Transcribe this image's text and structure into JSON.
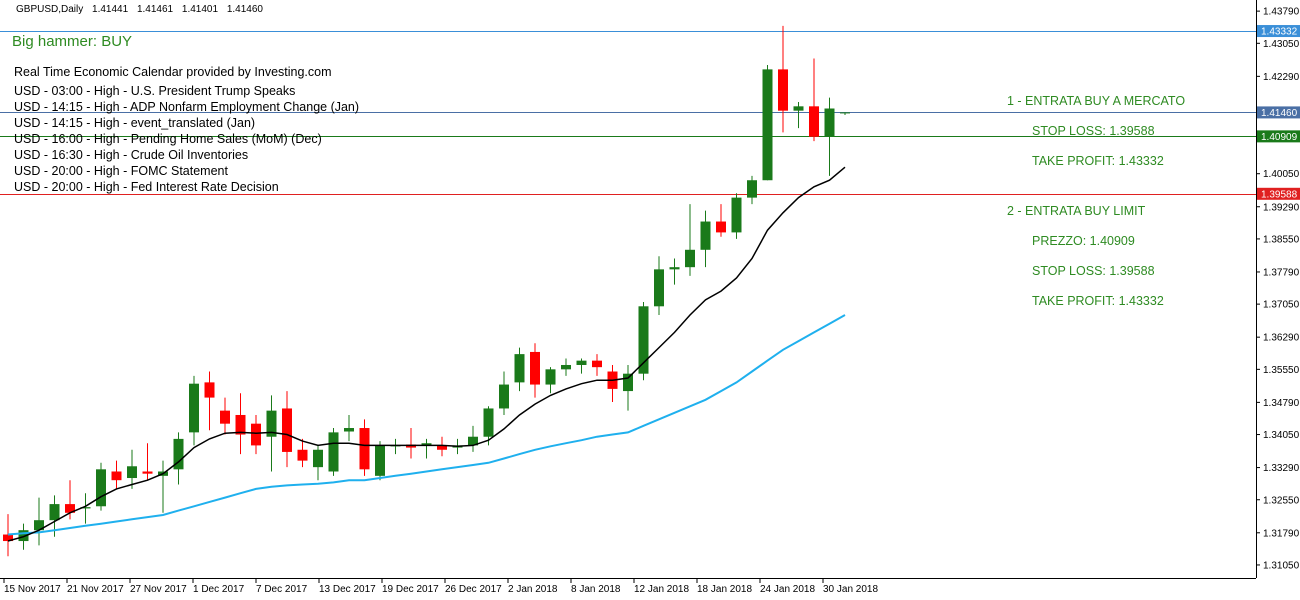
{
  "header": {
    "symbol": "GBPUSD,Daily",
    "ohlc": [
      "1.41441",
      "1.41461",
      "1.41401",
      "1.41460"
    ]
  },
  "signal": "Big hammer: BUY",
  "calendar": {
    "title": "Real Time Economic Calendar provided by Investing.com",
    "events": [
      "USD - 03:00 - High - U.S. President Trump Speaks",
      "USD - 14:15 - High - ADP Nonfarm Employment Change (Jan)",
      "USD - 14:15 - High - event_translated (Jan)",
      "USD - 16:00 - High - Pending Home Sales (MoM) (Dec)",
      "USD - 16:30 - High - Crude Oil Inventories",
      "USD - 20:00 - High - FOMC Statement",
      "USD - 20:00 - High - Fed Interest Rate Decision"
    ]
  },
  "trade_plan": [
    "1 - ENTRATA BUY A MERCATO",
    "STOP LOSS: 1.39588",
    "TAKE PROFIT: 1.43332",
    "2 - ENTRATA BUY LIMIT",
    "PREZZO: 1.40909",
    "STOP LOSS: 1.39588",
    "TAKE PROFIT: 1.43332"
  ],
  "colors": {
    "bull": "#1a7a1a",
    "bear": "#ff0000",
    "ma_fast": "#000000",
    "ma_slow": "#1fb0ee",
    "tp_line": "#3a8fd8",
    "price_line": "#4a6fa5",
    "entry_line": "#1a7a1a",
    "sl_line": "#e02020"
  },
  "chart_data": {
    "type": "candlestick",
    "symbol": "GBPUSD,Daily",
    "y_range": [
      1.3075,
      1.44
    ],
    "y_ticks": [
      "1.43790",
      "1.43050",
      "1.42290",
      "1.41460",
      "1.40909",
      "1.40050",
      "1.39588",
      "1.39290",
      "1.38550",
      "1.37790",
      "1.37050",
      "1.36290",
      "1.35550",
      "1.34790",
      "1.34050",
      "1.33290",
      "1.32550",
      "1.31790",
      "1.31050"
    ],
    "x_labels": [
      "15 Nov 2017",
      "21 Nov 2017",
      "27 Nov 2017",
      "1 Dec 2017",
      "7 Dec 2017",
      "13 Dec 2017",
      "19 Dec 2017",
      "26 Dec 2017",
      "2 Jan 2018",
      "8 Jan 2018",
      "12 Jan 2018",
      "18 Jan 2018",
      "24 Jan 2018",
      "30 Jan 2018"
    ],
    "levels": [
      {
        "price": 1.43332,
        "label": "1.43332",
        "role": "tp"
      },
      {
        "price": 1.4146,
        "label": "1.41460",
        "role": "price"
      },
      {
        "price": 1.40909,
        "label": "1.40909",
        "role": "entry"
      },
      {
        "price": 1.39588,
        "label": "1.39588",
        "role": "sl"
      }
    ],
    "candles": [
      [
        1.3175,
        1.3222,
        1.3125,
        1.316
      ],
      [
        1.316,
        1.32,
        1.314,
        1.3185
      ],
      [
        1.3185,
        1.326,
        1.315,
        1.3208
      ],
      [
        1.3208,
        1.3265,
        1.317,
        1.3245
      ],
      [
        1.3245,
        1.33,
        1.321,
        1.3225
      ],
      [
        1.3235,
        1.327,
        1.32,
        1.3238
      ],
      [
        1.324,
        1.334,
        1.323,
        1.3325
      ],
      [
        1.332,
        1.3345,
        1.328,
        1.33
      ],
      [
        1.3305,
        1.337,
        1.328,
        1.3332
      ],
      [
        1.332,
        1.3385,
        1.33,
        1.3315
      ],
      [
        1.331,
        1.3345,
        1.3225,
        1.332
      ],
      [
        1.3325,
        1.341,
        1.329,
        1.3395
      ],
      [
        1.341,
        1.354,
        1.338,
        1.3522
      ],
      [
        1.3525,
        1.355,
        1.3415,
        1.349
      ],
      [
        1.346,
        1.349,
        1.3405,
        1.343
      ],
      [
        1.345,
        1.35,
        1.336,
        1.3405
      ],
      [
        1.343,
        1.345,
        1.336,
        1.338
      ],
      [
        1.34,
        1.3495,
        1.332,
        1.346
      ],
      [
        1.3465,
        1.3505,
        1.333,
        1.3365
      ],
      [
        1.337,
        1.3395,
        1.333,
        1.3345
      ],
      [
        1.333,
        1.338,
        1.33,
        1.337
      ],
      [
        1.332,
        1.342,
        1.331,
        1.341
      ],
      [
        1.3412,
        1.345,
        1.339,
        1.342
      ],
      [
        1.342,
        1.344,
        1.331,
        1.3325
      ],
      [
        1.331,
        1.339,
        1.33,
        1.338
      ],
      [
        1.338,
        1.3395,
        1.336,
        1.338
      ],
      [
        1.3382,
        1.342,
        1.335,
        1.3375
      ],
      [
        1.338,
        1.3395,
        1.335,
        1.3385
      ],
      [
        1.338,
        1.34,
        1.3355,
        1.337
      ],
      [
        1.3375,
        1.3395,
        1.336,
        1.338
      ],
      [
        1.338,
        1.3425,
        1.3365,
        1.34
      ],
      [
        1.34,
        1.347,
        1.338,
        1.3465
      ],
      [
        1.3465,
        1.355,
        1.345,
        1.352
      ],
      [
        1.3525,
        1.3605,
        1.3505,
        1.359
      ],
      [
        1.3595,
        1.3615,
        1.349,
        1.352
      ],
      [
        1.352,
        1.356,
        1.35,
        1.3555
      ],
      [
        1.3555,
        1.358,
        1.354,
        1.3565
      ],
      [
        1.3565,
        1.358,
        1.3545,
        1.3575
      ],
      [
        1.3575,
        1.359,
        1.354,
        1.356
      ],
      [
        1.355,
        1.3565,
        1.348,
        1.351
      ],
      [
        1.3505,
        1.3565,
        1.346,
        1.3545
      ],
      [
        1.3545,
        1.371,
        1.353,
        1.37
      ],
      [
        1.37,
        1.3815,
        1.368,
        1.3785
      ],
      [
        1.3785,
        1.381,
        1.375,
        1.379
      ],
      [
        1.379,
        1.3935,
        1.377,
        1.383
      ],
      [
        1.383,
        1.392,
        1.379,
        1.3895
      ],
      [
        1.3895,
        1.3935,
        1.386,
        1.387
      ],
      [
        1.387,
        1.396,
        1.3855,
        1.395
      ],
      [
        1.395,
        1.4,
        1.3935,
        1.399
      ],
      [
        1.399,
        1.4255,
        1.399,
        1.4245
      ],
      [
        1.4245,
        1.4345,
        1.41,
        1.415
      ],
      [
        1.415,
        1.417,
        1.411,
        1.416
      ],
      [
        1.416,
        1.427,
        1.408,
        1.409
      ],
      [
        1.409,
        1.418,
        1.4,
        1.4155
      ],
      [
        1.4144,
        1.4146,
        1.414,
        1.4146
      ]
    ],
    "ma_fast": [
      1.316,
      1.317,
      1.3185,
      1.3205,
      1.3225,
      1.324,
      1.3262,
      1.328,
      1.329,
      1.33,
      1.3315,
      1.3342,
      1.3375,
      1.3395,
      1.3408,
      1.341,
      1.3408,
      1.341,
      1.3405,
      1.339,
      1.338,
      1.3385,
      1.3385,
      1.338,
      1.338,
      1.338,
      1.338,
      1.338,
      1.338,
      1.3378,
      1.338,
      1.3392,
      1.3418,
      1.345,
      1.3475,
      1.3495,
      1.351,
      1.3522,
      1.353,
      1.353,
      1.3535,
      1.357,
      1.3605,
      1.364,
      1.368,
      1.3715,
      1.3735,
      1.3765,
      1.381,
      1.3875,
      1.3915,
      1.395,
      1.3975,
      1.399,
      1.402
    ],
    "ma_slow": [
      1.3175,
      1.3178,
      1.318,
      1.3185,
      1.319,
      1.3195,
      1.32,
      1.3205,
      1.321,
      1.3215,
      1.322,
      1.323,
      1.324,
      1.325,
      1.326,
      1.327,
      1.328,
      1.3285,
      1.3288,
      1.329,
      1.3292,
      1.3295,
      1.33,
      1.33,
      1.3305,
      1.331,
      1.3315,
      1.332,
      1.3325,
      1.333,
      1.3335,
      1.334,
      1.335,
      1.336,
      1.337,
      1.3378,
      1.3385,
      1.3392,
      1.34,
      1.3405,
      1.341,
      1.3425,
      1.344,
      1.3455,
      1.347,
      1.3485,
      1.3505,
      1.3525,
      1.355,
      1.3575,
      1.36,
      1.362,
      1.364,
      1.366,
      1.368
    ]
  }
}
